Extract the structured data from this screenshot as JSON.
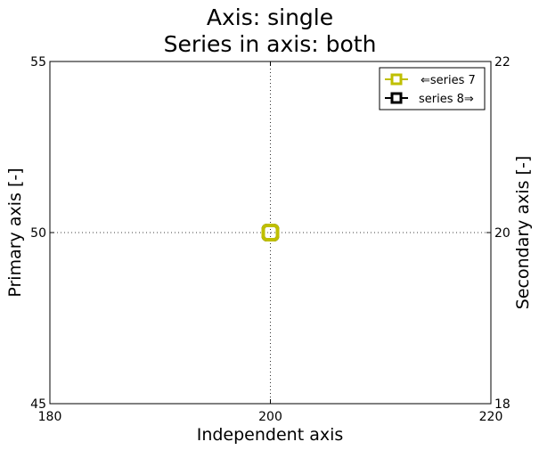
{
  "chart_data": {
    "type": "line",
    "title": [
      "Axis: single",
      "Series in axis: both"
    ],
    "xlabel": "Independent axis",
    "ylabel": "Primary axis [-]",
    "y2label": "Secondary axis [-]",
    "xlim": [
      180,
      220
    ],
    "ylim": [
      45,
      55
    ],
    "y2lim": [
      18,
      22
    ],
    "x_ticks": [
      "180",
      "200",
      "220"
    ],
    "y_ticks": [
      "45",
      "50",
      "55"
    ],
    "y2_ticks": [
      "18",
      "20",
      "22"
    ],
    "grid": true,
    "legend_position": "top-right",
    "series": [
      {
        "name": "⇐series 7",
        "axis": "primary",
        "color": "#bfbf00",
        "marker": "square-open",
        "x": [
          200
        ],
        "y": [
          50
        ]
      },
      {
        "name": "series 8⇒",
        "axis": "secondary",
        "color": "#000000",
        "marker": "square-open",
        "x": [
          200
        ],
        "y": [
          20
        ]
      }
    ]
  }
}
